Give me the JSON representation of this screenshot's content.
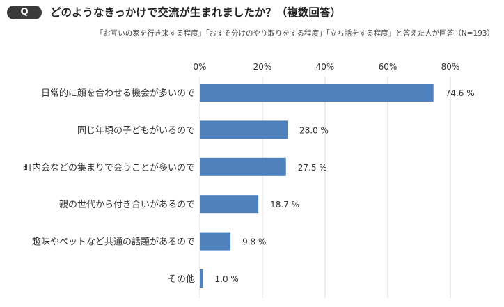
{
  "header": {
    "badge": "Q",
    "title": "どのようなきっかけで交流が生まれましたか？（複数回答）",
    "subtitle": "「お互いの家を行き来する程度」「おすそ分けのやり取りをする程度」「立ち話をする程度」と答えた人が回答（N=193）"
  },
  "colors": {
    "bar": "#4f81bd",
    "grid": "#d9d9d9",
    "text": "#333333"
  },
  "chart_data": {
    "type": "bar",
    "orientation": "horizontal",
    "categories": [
      "日常的に顔を合わせる機会が多いので",
      "同じ年頃の子どもがいるので",
      "町内会などの集まりで会うことが多いので",
      "親の世代から付き合いがあるので",
      "趣味やペットなど共通の話題があるので",
      "その他"
    ],
    "values": [
      74.6,
      28.0,
      27.5,
      18.7,
      9.8,
      1.0
    ],
    "value_labels": [
      "74.6 %",
      "28.0 %",
      "27.5 %",
      "18.7 %",
      "9.8 %",
      "1.0 %"
    ],
    "x_ticks": [
      0,
      20,
      40,
      60,
      80
    ],
    "x_tick_labels": [
      "0%",
      "20%",
      "40%",
      "60%",
      "80%"
    ],
    "xlim": [
      0,
      80
    ],
    "grid": true,
    "legend": "none"
  }
}
